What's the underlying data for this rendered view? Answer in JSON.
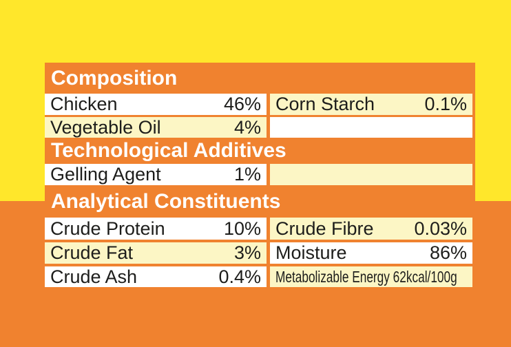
{
  "page": {
    "background_top_color": "#FFE72B",
    "background_bottom_color": "#F0822F",
    "header_color": "#F0822F",
    "cell_white_color": "#FFFFFF",
    "cell_cream_color": "#FCF6C5",
    "text_color": "#1D1D1B",
    "header_text_color": "#FFFFFF"
  },
  "table": {
    "sections": [
      {
        "title": "Composition",
        "rows": [
          {
            "cells": [
              {
                "label": "Chicken",
                "value": "46%"
              },
              {
                "label": "Corn Starch",
                "value": "0.1%"
              }
            ]
          },
          {
            "cells": [
              {
                "label": "Vegetable Oil",
                "value": "4%"
              },
              {
                "label": "",
                "value": ""
              }
            ]
          }
        ]
      },
      {
        "title": "Technological Additives",
        "rows": [
          {
            "cells": [
              {
                "label": "Gelling Agent",
                "value": "1%"
              },
              {
                "label": "",
                "value": ""
              }
            ]
          }
        ]
      },
      {
        "title": "Analytical Constituents",
        "rows": [
          {
            "cells": [
              {
                "label": "Crude Protein",
                "value": "10%"
              },
              {
                "label": "Crude Fibre",
                "value": "0.03%"
              }
            ]
          },
          {
            "cells": [
              {
                "label": "Crude Fat",
                "value": "3%"
              },
              {
                "label": "Moisture",
                "value": "86%"
              }
            ]
          },
          {
            "cells": [
              {
                "label": "Crude Ash",
                "value": "0.4%"
              },
              {
                "label": "Metabolizable Energy 62kcal/100g",
                "value": ""
              }
            ]
          }
        ]
      }
    ]
  }
}
